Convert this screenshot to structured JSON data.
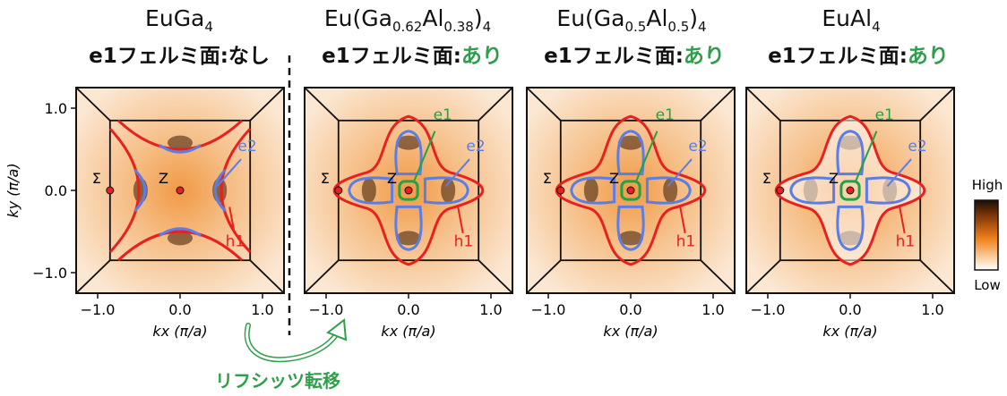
{
  "panels": [
    {
      "title_main": "EuGa",
      "title_sub": "4",
      "title_suffix": "",
      "fermi_label": "e1フェルミ面:",
      "fermi_status": "なし",
      "has_e1": false
    },
    {
      "title_main": "Eu(Ga",
      "title_sub": "0.62",
      "title_mid": "Al",
      "title_sub2": "0.38",
      "title_suffix": ")",
      "title_sub3": "4",
      "fermi_label": "e1フェルミ面:",
      "fermi_status": "あり",
      "has_e1": true
    },
    {
      "title_main": "Eu(Ga",
      "title_sub": "0.5",
      "title_mid": "Al",
      "title_sub2": "0.5",
      "title_suffix": ")",
      "title_sub3": "4",
      "fermi_label": "e1フェルミ面:",
      "fermi_status": "あり",
      "has_e1": true
    },
    {
      "title_main": "EuAl",
      "title_sub": "4",
      "title_suffix": "",
      "fermi_label": "e1フェルミ面:",
      "fermi_status": "あり",
      "has_e1": true
    }
  ],
  "labels": {
    "e1": "e1",
    "e2": "e2",
    "h1": "h1",
    "sigma": "Σ",
    "z": "Z"
  },
  "colorbar": {
    "high": "High",
    "low": "Low"
  },
  "transition_label": "リフシッツ転移",
  "colors": {
    "h1": "#e8211e",
    "e2": "#5a7ee6",
    "e1": "#22a247",
    "arrow": "#2fa04a"
  },
  "chart_data": {
    "type": "heatmap",
    "xlabel": "kx (π/a)",
    "ylabel": "ky (π/a)",
    "xlim": [
      -1.2,
      1.2
    ],
    "ylim": [
      -1.2,
      1.2
    ],
    "xticks": [
      "-1.0",
      "0.0",
      "1.0"
    ],
    "yticks": [
      "-1.0",
      "0.0",
      "1.0"
    ],
    "points": {
      "Sigma": [
        -0.85,
        0.0
      ],
      "Z": [
        0.0,
        0.0
      ]
    }
  }
}
